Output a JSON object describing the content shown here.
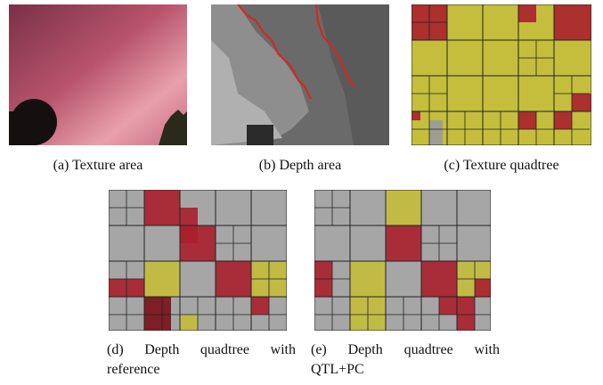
{
  "captions": {
    "a": "(a) Texture area",
    "b": "(b) Depth area",
    "c": "(c) Texture quadtree",
    "d": "(d) Depth quadtree with reference",
    "e": "(e) Depth quadtree with QTL+PC"
  }
}
